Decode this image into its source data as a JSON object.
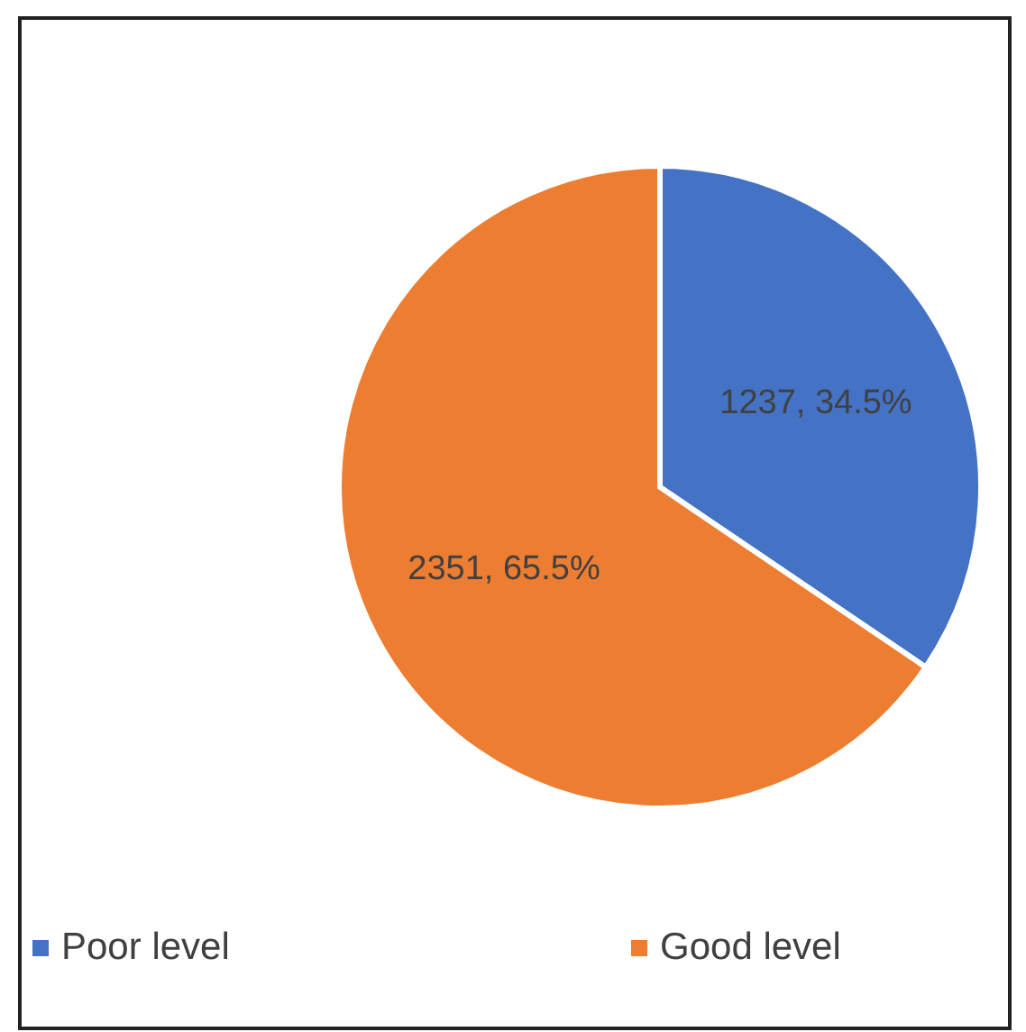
{
  "chart_data": {
    "type": "pie",
    "categories": [
      "Poor level",
      "Good level"
    ],
    "values": [
      1237,
      2351
    ],
    "colors": [
      "#4472c4",
      "#ed7d31"
    ],
    "value_labels": [
      "1237, 34.5%",
      "2351, 65.5%"
    ],
    "legend": "bottom"
  }
}
